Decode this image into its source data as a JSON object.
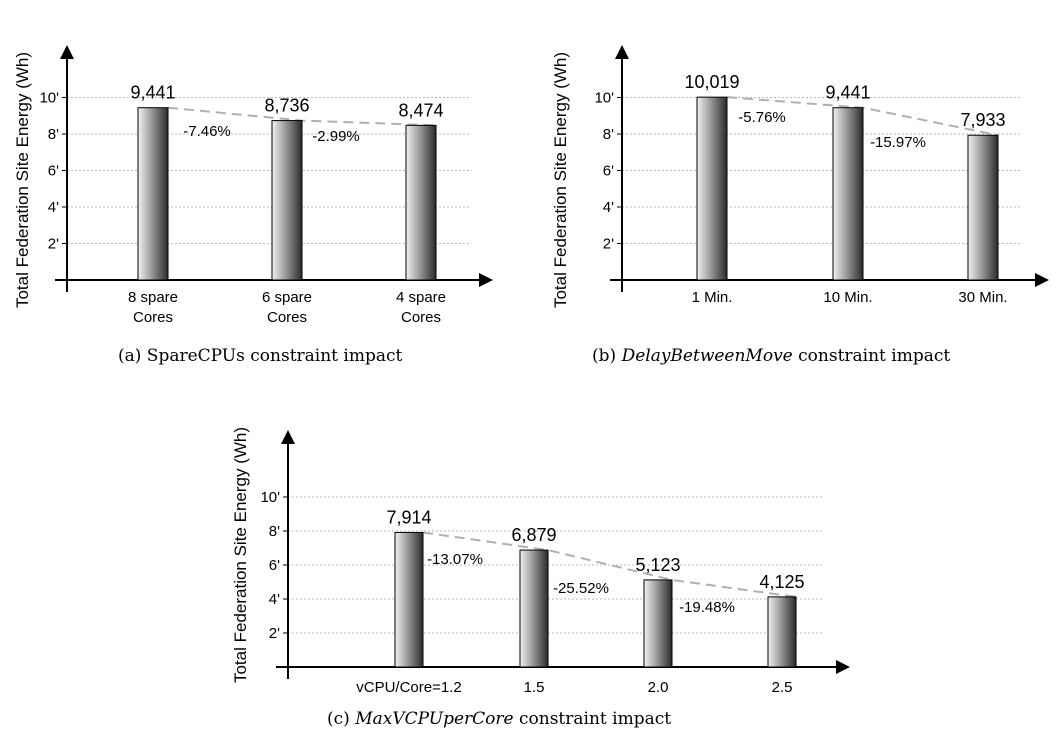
{
  "chart_data": [
    {
      "type": "bar",
      "ylabel": "Total Federation Site Energy (Wh)",
      "yticks": [
        "2'",
        "4'",
        "6'",
        "8'",
        "10'"
      ],
      "ylim": [
        0,
        12000
      ],
      "grid": true,
      "categories": [
        [
          "8 spare",
          "Cores"
        ],
        [
          "6 spare",
          "Cores"
        ],
        [
          "4 spare",
          "Cores"
        ]
      ],
      "values": [
        9441,
        8736,
        8474
      ],
      "value_labels": [
        "9,441",
        "8,736",
        "8,474"
      ],
      "changes": [
        "-7.46%",
        "-2.99%"
      ],
      "caption": {
        "prefix": "(a) SpareCPUs",
        "italic": "",
        "suffix": " constraint impact"
      }
    },
    {
      "type": "bar",
      "ylabel": "Total Federation Site Energy (Wh)",
      "yticks": [
        "2'",
        "4'",
        "6'",
        "8'",
        "10'"
      ],
      "ylim": [
        0,
        12000
      ],
      "grid": true,
      "categories": [
        [
          "1 Min."
        ],
        [
          "10 Min."
        ],
        [
          "30 Min."
        ]
      ],
      "values": [
        10019,
        9441,
        7933
      ],
      "value_labels": [
        "10,019",
        "9,441",
        "7,933"
      ],
      "changes": [
        "-5.76%",
        "-15.97%"
      ],
      "caption": {
        "prefix": "(b) ",
        "italic": "DelayBetweenMove",
        "suffix": " constraint impact"
      }
    },
    {
      "type": "bar",
      "ylabel": "Total Federation Site Energy (Wh)",
      "yticks": [
        "2'",
        "4'",
        "6'",
        "8'",
        "10'"
      ],
      "ylim": [
        0,
        12000
      ],
      "grid": true,
      "categories": [
        [
          "vCPU/Core=1.2"
        ],
        [
          "1.5"
        ],
        [
          "2.0"
        ],
        [
          "2.5"
        ]
      ],
      "values": [
        7914,
        6879,
        5123,
        4125
      ],
      "value_labels": [
        "7,914",
        "6,879",
        "5,123",
        "4,125"
      ],
      "changes": [
        "-13.07%",
        "-25.52%",
        "-19.48%"
      ],
      "caption": {
        "prefix": "(c) ",
        "italic": "MaxVCPUperCore",
        "suffix": " constraint impact"
      }
    }
  ]
}
